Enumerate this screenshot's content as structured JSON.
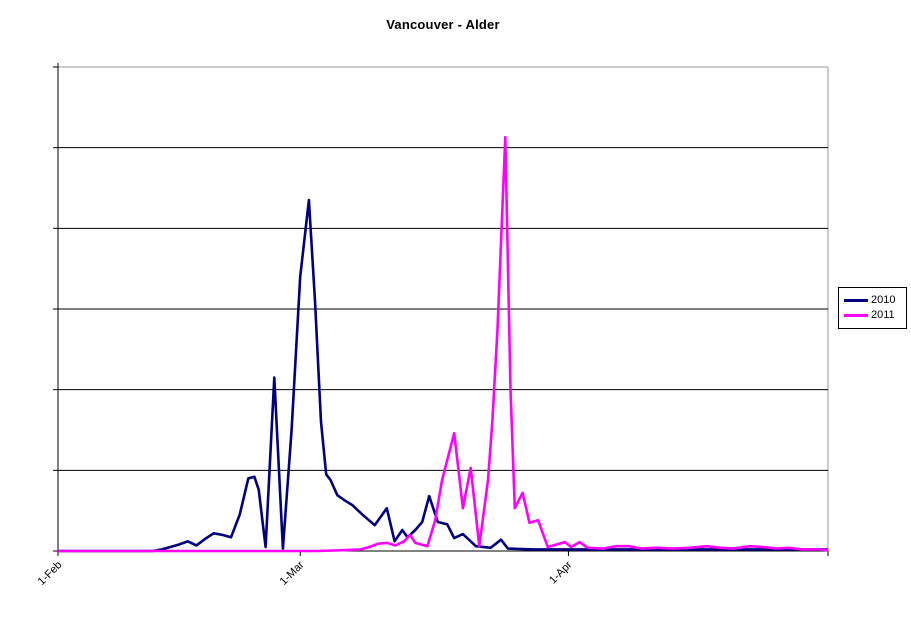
{
  "chart_data": {
    "type": "line",
    "title": "Vancouver - Alder",
    "xlabel": "",
    "ylabel": "",
    "x_unit": "days since 1-Feb",
    "x_range": [
      0,
      89
    ],
    "x_ticks": [
      {
        "day": 0,
        "label": "1-Feb"
      },
      {
        "day": 28,
        "label": "1-Mar"
      },
      {
        "day": 59,
        "label": "1-Apr"
      }
    ],
    "y_axis": {
      "labeled": false,
      "ylim": [
        0,
        6
      ],
      "gridline_interval": 1
    },
    "grid": "horizontal",
    "legend_position": "right",
    "colors": {
      "series_2010": "#000080",
      "series_2011": "#FF00FF",
      "gridline": "#000000",
      "outer_border": "#9a9a9a"
    },
    "series": [
      {
        "name": "2010",
        "color": "#000080",
        "points": [
          [
            0,
            0
          ],
          [
            3,
            0
          ],
          [
            6,
            0
          ],
          [
            9,
            0
          ],
          [
            11,
            0
          ],
          [
            12,
            0.02
          ],
          [
            13,
            0.05
          ],
          [
            14,
            0.08
          ],
          [
            15,
            0.12
          ],
          [
            16,
            0.07
          ],
          [
            17,
            0.15
          ],
          [
            18,
            0.22
          ],
          [
            19,
            0.2
          ],
          [
            20,
            0.17
          ],
          [
            21,
            0.45
          ],
          [
            22,
            0.9
          ],
          [
            22.7,
            0.92
          ],
          [
            23.2,
            0.76
          ],
          [
            24,
            0.05
          ],
          [
            25,
            2.15
          ],
          [
            26,
            0.03
          ],
          [
            27,
            1.5
          ],
          [
            28,
            3.4
          ],
          [
            29,
            4.35
          ],
          [
            29.7,
            3.1
          ],
          [
            30.4,
            1.6
          ],
          [
            31,
            0.95
          ],
          [
            31.5,
            0.88
          ],
          [
            32.3,
            0.69
          ],
          [
            33.1,
            0.63
          ],
          [
            34,
            0.57
          ],
          [
            35.2,
            0.45
          ],
          [
            36.6,
            0.32
          ],
          [
            38,
            0.53
          ],
          [
            38.9,
            0.12
          ],
          [
            39.8,
            0.26
          ],
          [
            40.4,
            0.17
          ],
          [
            41.3,
            0.26
          ],
          [
            42.1,
            0.36
          ],
          [
            42.9,
            0.68
          ],
          [
            43.9,
            0.36
          ],
          [
            45,
            0.33
          ],
          [
            45.8,
            0.16
          ],
          [
            46.8,
            0.21
          ],
          [
            48.3,
            0.06
          ],
          [
            50,
            0.04
          ],
          [
            51.2,
            0.14
          ],
          [
            52,
            0.03
          ],
          [
            55,
            0.02
          ],
          [
            60,
            0.02
          ],
          [
            65,
            0.02
          ],
          [
            70,
            0.02
          ],
          [
            75,
            0.02
          ],
          [
            80,
            0.02
          ],
          [
            85,
            0.02
          ],
          [
            89,
            0.02
          ]
        ]
      },
      {
        "name": "2011",
        "color": "#FF00FF",
        "points": [
          [
            0,
            0
          ],
          [
            5,
            0
          ],
          [
            10,
            0
          ],
          [
            15,
            0
          ],
          [
            20,
            0
          ],
          [
            25,
            0
          ],
          [
            30,
            0
          ],
          [
            33,
            0.01
          ],
          [
            35,
            0.02
          ],
          [
            36,
            0.05
          ],
          [
            37,
            0.09
          ],
          [
            38,
            0.1
          ],
          [
            39,
            0.07
          ],
          [
            40,
            0.12
          ],
          [
            40.7,
            0.2
          ],
          [
            41.3,
            0.1
          ],
          [
            42.7,
            0.06
          ],
          [
            43.6,
            0.38
          ],
          [
            44.4,
            0.88
          ],
          [
            45.8,
            1.46
          ],
          [
            46.8,
            0.53
          ],
          [
            47.7,
            1.03
          ],
          [
            48.7,
            0.06
          ],
          [
            49.7,
            0.88
          ],
          [
            50.2,
            1.6
          ],
          [
            50.8,
            2.75
          ],
          [
            51.7,
            5.13
          ],
          [
            52.3,
            2.0
          ],
          [
            52.8,
            0.53
          ],
          [
            53.7,
            0.72
          ],
          [
            54.5,
            0.35
          ],
          [
            55.5,
            0.38
          ],
          [
            56.6,
            0.05
          ],
          [
            58.6,
            0.11
          ],
          [
            59.3,
            0.05
          ],
          [
            60.3,
            0.11
          ],
          [
            61.2,
            0.04
          ],
          [
            63,
            0.03
          ],
          [
            64.5,
            0.06
          ],
          [
            66,
            0.06
          ],
          [
            67.5,
            0.03
          ],
          [
            69,
            0.04
          ],
          [
            71,
            0.03
          ],
          [
            73,
            0.04
          ],
          [
            75,
            0.06
          ],
          [
            76.5,
            0.04
          ],
          [
            78,
            0.03
          ],
          [
            80,
            0.06
          ],
          [
            81.5,
            0.05
          ],
          [
            83,
            0.03
          ],
          [
            84.5,
            0.04
          ],
          [
            86,
            0.02
          ],
          [
            88,
            0.02
          ],
          [
            89,
            0.01
          ]
        ]
      }
    ]
  }
}
